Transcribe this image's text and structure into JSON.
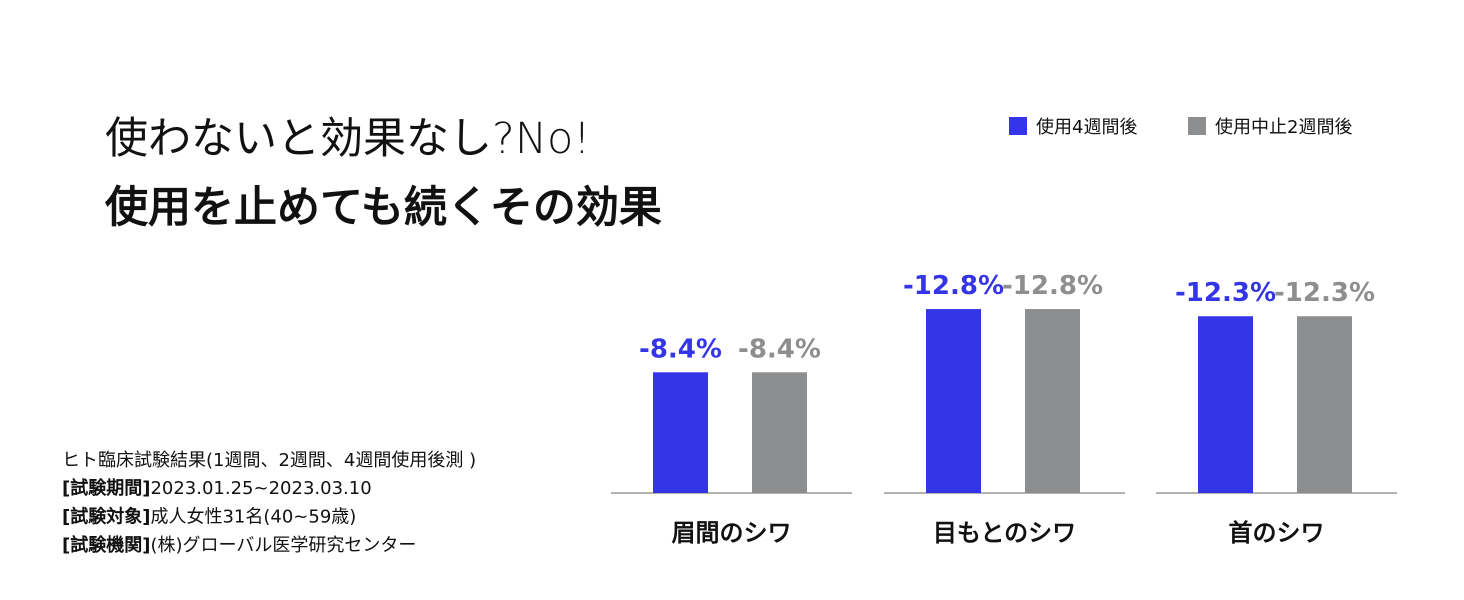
{
  "chart_data": {
    "type": "bar",
    "title": "使わないと効果なし?No!",
    "subtitle": "使用を止めても続くその効果",
    "categories": [
      "眉間のシワ",
      "目もとのシワ",
      "首のシワ"
    ],
    "series": [
      {
        "name": "使用4週間後",
        "color": "#3535e8",
        "values": [
          -8.4,
          -12.8,
          -12.3
        ],
        "value_labels": [
          "-8.4%",
          "-12.8%",
          "-12.3%"
        ]
      },
      {
        "name": "使用中止2週間後",
        "color": "#8c8e90",
        "values": [
          -8.4,
          -12.8,
          -12.3
        ],
        "value_labels": [
          "-8.4%",
          "-12.8%",
          "-12.3%"
        ]
      }
    ],
    "ylim": [
      0,
      -13.5
    ],
    "legend": "top-right"
  },
  "notes": {
    "intro": "ヒト臨床試験結果(1週間、2週間、4週間使用後測 )",
    "items": [
      {
        "label": "[試験期間]",
        "text": "2023.01.25~2023.03.10"
      },
      {
        "label": "[試験対象]",
        "text": "成人女性31名(40~59歳)"
      },
      {
        "label": "[試験機関]",
        "text": "(株)グローバル医学研究センター"
      }
    ]
  }
}
